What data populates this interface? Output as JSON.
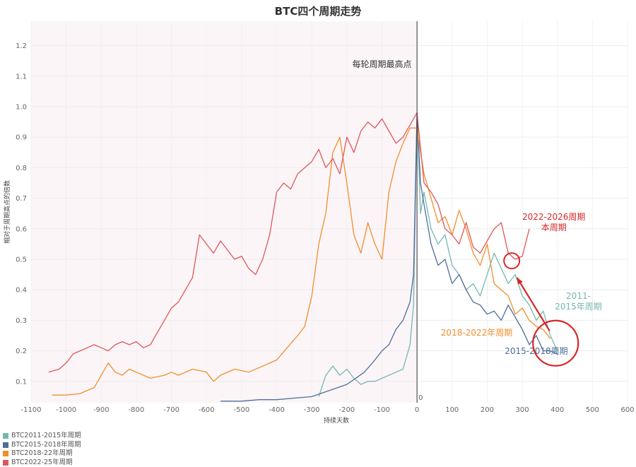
{
  "chart_data": {
    "type": "line",
    "title": "BTC四个周期走势",
    "xlabel": "持续天数",
    "ylabel": "相对于周期高点的倍数",
    "xlim": [
      -1100,
      600
    ],
    "ylim": [
      0.03,
      1.28
    ],
    "x_ticks": [
      -1100,
      -1000,
      -900,
      -800,
      -700,
      -600,
      -500,
      -400,
      -300,
      -200,
      -100,
      0,
      100,
      200,
      300,
      400,
      500,
      600
    ],
    "y_ticks": [
      0.1,
      0.2,
      0.3,
      0.4,
      0.5,
      0.6,
      0.7,
      0.8,
      0.9,
      1.0,
      1.1,
      1.2
    ],
    "zero_line_label": "0",
    "series": [
      {
        "name": "BTC2011-2015年周期",
        "color": "#76b7b2",
        "x": [
          -280,
          -260,
          -240,
          -220,
          -200,
          -180,
          -160,
          -140,
          -120,
          -100,
          -80,
          -60,
          -40,
          -20,
          -10,
          0,
          10,
          20,
          40,
          60,
          80,
          100,
          120,
          140,
          160,
          180,
          200,
          220,
          240,
          260,
          280,
          300,
          320,
          340,
          360,
          380,
          400
        ],
        "y": [
          0.05,
          0.12,
          0.15,
          0.12,
          0.14,
          0.11,
          0.09,
          0.1,
          0.1,
          0.11,
          0.12,
          0.13,
          0.14,
          0.22,
          0.35,
          0.98,
          0.65,
          0.72,
          0.6,
          0.55,
          0.58,
          0.48,
          0.45,
          0.4,
          0.42,
          0.38,
          0.45,
          0.52,
          0.47,
          0.42,
          0.45,
          0.38,
          0.35,
          0.3,
          0.33,
          0.25,
          0.2
        ]
      },
      {
        "name": "BTC2015-2018年周期",
        "color": "#4e6e9a",
        "x": [
          -560,
          -500,
          -450,
          -400,
          -350,
          -300,
          -250,
          -200,
          -150,
          -120,
          -100,
          -80,
          -60,
          -40,
          -20,
          -10,
          0,
          10,
          20,
          40,
          60,
          80,
          100,
          120,
          140,
          160,
          180,
          200,
          220,
          240,
          260,
          280,
          300,
          320,
          340,
          360,
          380,
          400
        ],
        "y": [
          0.035,
          0.035,
          0.04,
          0.04,
          0.045,
          0.05,
          0.07,
          0.09,
          0.13,
          0.17,
          0.2,
          0.22,
          0.27,
          0.3,
          0.36,
          0.45,
          0.98,
          0.75,
          0.68,
          0.55,
          0.48,
          0.5,
          0.42,
          0.45,
          0.4,
          0.36,
          0.35,
          0.32,
          0.33,
          0.3,
          0.35,
          0.31,
          0.27,
          0.22,
          0.25,
          0.2,
          0.2,
          0.19
        ]
      },
      {
        "name": "BTC2018-22年周期",
        "color": "#f28e2b",
        "x": [
          -1040,
          -1000,
          -960,
          -920,
          -900,
          -880,
          -860,
          -840,
          -820,
          -800,
          -760,
          -720,
          -700,
          -680,
          -640,
          -600,
          -580,
          -560,
          -520,
          -480,
          -440,
          -400,
          -370,
          -340,
          -320,
          -300,
          -280,
          -260,
          -240,
          -220,
          -200,
          -180,
          -160,
          -140,
          -120,
          -100,
          -80,
          -60,
          -40,
          -20,
          0,
          10,
          20,
          40,
          60,
          80,
          100,
          120,
          140,
          160,
          180,
          200,
          220,
          240,
          260,
          280,
          300,
          320,
          340,
          360,
          380
        ],
        "y": [
          0.055,
          0.055,
          0.06,
          0.08,
          0.12,
          0.16,
          0.13,
          0.12,
          0.14,
          0.13,
          0.11,
          0.12,
          0.13,
          0.12,
          0.14,
          0.13,
          0.1,
          0.12,
          0.14,
          0.13,
          0.15,
          0.17,
          0.21,
          0.25,
          0.28,
          0.38,
          0.55,
          0.65,
          0.85,
          0.9,
          0.75,
          0.58,
          0.52,
          0.62,
          0.55,
          0.5,
          0.72,
          0.82,
          0.88,
          0.93,
          0.93,
          0.85,
          0.78,
          0.7,
          0.62,
          0.64,
          0.58,
          0.66,
          0.6,
          0.52,
          0.48,
          0.55,
          0.42,
          0.4,
          0.38,
          0.32,
          0.34,
          0.3,
          0.28,
          0.27,
          0.24
        ]
      },
      {
        "name": "BTC2022-25年周期",
        "color": "#e15759",
        "x": [
          -1050,
          -1020,
          -1000,
          -980,
          -960,
          -940,
          -920,
          -900,
          -880,
          -860,
          -840,
          -820,
          -800,
          -780,
          -760,
          -740,
          -720,
          -700,
          -680,
          -660,
          -640,
          -620,
          -600,
          -580,
          -560,
          -540,
          -520,
          -500,
          -480,
          -460,
          -440,
          -420,
          -400,
          -380,
          -360,
          -340,
          -320,
          -300,
          -280,
          -260,
          -240,
          -220,
          -200,
          -180,
          -160,
          -140,
          -120,
          -100,
          -80,
          -60,
          -40,
          -20,
          0,
          20,
          40,
          60,
          80,
          100,
          120,
          140,
          160,
          180,
          200,
          220,
          240,
          260,
          280,
          300,
          320
        ],
        "y": [
          0.13,
          0.14,
          0.16,
          0.19,
          0.2,
          0.21,
          0.22,
          0.21,
          0.2,
          0.22,
          0.23,
          0.22,
          0.23,
          0.21,
          0.22,
          0.26,
          0.3,
          0.34,
          0.36,
          0.4,
          0.44,
          0.58,
          0.55,
          0.52,
          0.56,
          0.53,
          0.5,
          0.51,
          0.47,
          0.45,
          0.5,
          0.58,
          0.72,
          0.75,
          0.73,
          0.78,
          0.8,
          0.82,
          0.86,
          0.8,
          0.83,
          0.78,
          0.9,
          0.85,
          0.92,
          0.95,
          0.93,
          0.96,
          0.92,
          0.88,
          0.9,
          0.94,
          0.98,
          0.75,
          0.72,
          0.68,
          0.6,
          0.58,
          0.55,
          0.62,
          0.54,
          0.52,
          0.56,
          0.6,
          0.62,
          0.52,
          0.5,
          0.51,
          0.6
        ]
      }
    ],
    "annotations": [
      {
        "text": "每轮周期最高点",
        "color": "#333333",
        "x": -100,
        "y": 1.13
      },
      {
        "text": "2022-2026周期",
        "color": "#d62728",
        "x": 390,
        "y": 0.63
      },
      {
        "text": "本周期",
        "color": "#d62728",
        "x": 390,
        "y": 0.595
      },
      {
        "text": "2011-",
        "color": "#76b7b2",
        "x": 460,
        "y": 0.37
      },
      {
        "text": "2015年周期",
        "color": "#76b7b2",
        "x": 460,
        "y": 0.335
      },
      {
        "text": "2018-2022年周期",
        "color": "#f28e2b",
        "x": 170,
        "y": 0.25
      },
      {
        "text": "2015-2018周期",
        "color": "#4e6e9a",
        "x": 340,
        "y": 0.19
      }
    ],
    "grid": true,
    "legend_position": "bottom-left",
    "background_region": {
      "x_from": -1100,
      "x_to": 0,
      "color": "#fbf5f8"
    }
  }
}
